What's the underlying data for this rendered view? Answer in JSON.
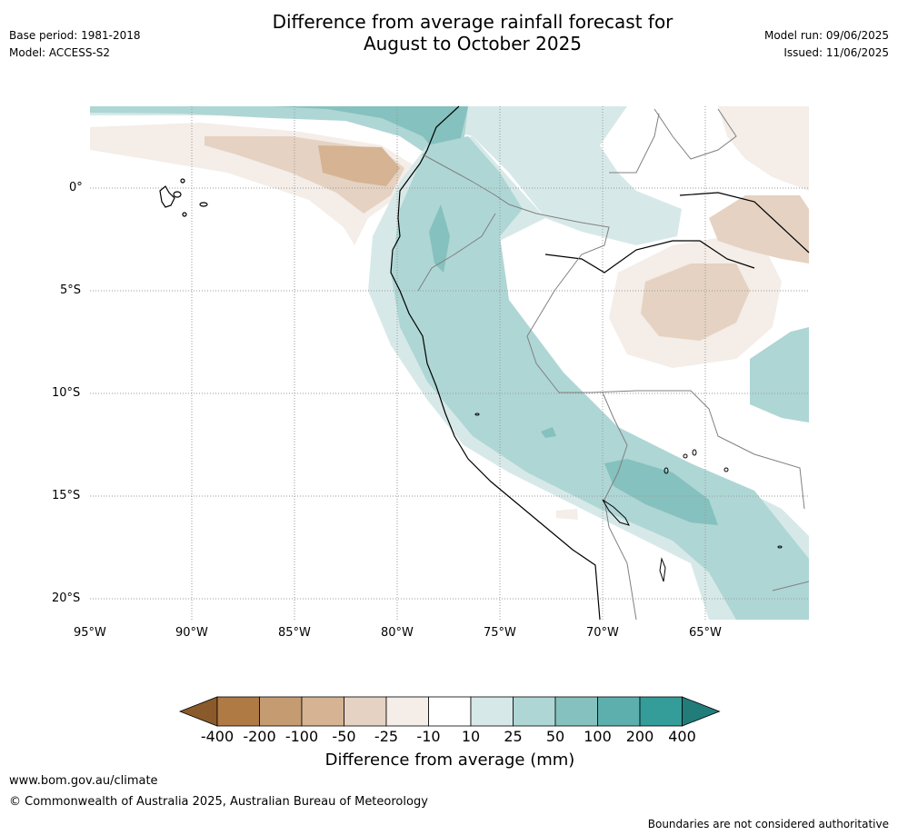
{
  "header": {
    "title_line1": "Difference from average rainfall forecast for",
    "title_line2": "August to October 2025",
    "base_period": "Base period: 1981-2018",
    "model": "Model: ACCESS-S2",
    "model_run": "Model run: 09/06/2025",
    "issued": "Issued: 11/06/2025"
  },
  "map": {
    "lat_ticks": [
      "0°",
      "5°S",
      "10°S",
      "15°S",
      "20°S"
    ],
    "lon_ticks": [
      "95°W",
      "90°W",
      "85°W",
      "80°W",
      "75°W",
      "70°W",
      "65°W"
    ]
  },
  "colorbar": {
    "labels": [
      "-400",
      "-200",
      "-100",
      "-50",
      "-25",
      "-10",
      "10",
      "25",
      "50",
      "100",
      "200",
      "400"
    ],
    "colors": [
      "#8b5a2b",
      "#b07a45",
      "#c59b72",
      "#d5b393",
      "#e5d2c2",
      "#f4ede8",
      "#ffffff",
      "#d6e9e8",
      "#aed6d5",
      "#85c1be",
      "#5dafad",
      "#349c99",
      "#217c7a"
    ],
    "title": "Difference from average (mm)"
  },
  "footer": {
    "url": "www.bom.gov.au/climate",
    "copyright": "© Commonwealth of Australia 2025, Australian Bureau of Meteorology",
    "disclaimer": "Boundaries are not considered authoritative"
  }
}
